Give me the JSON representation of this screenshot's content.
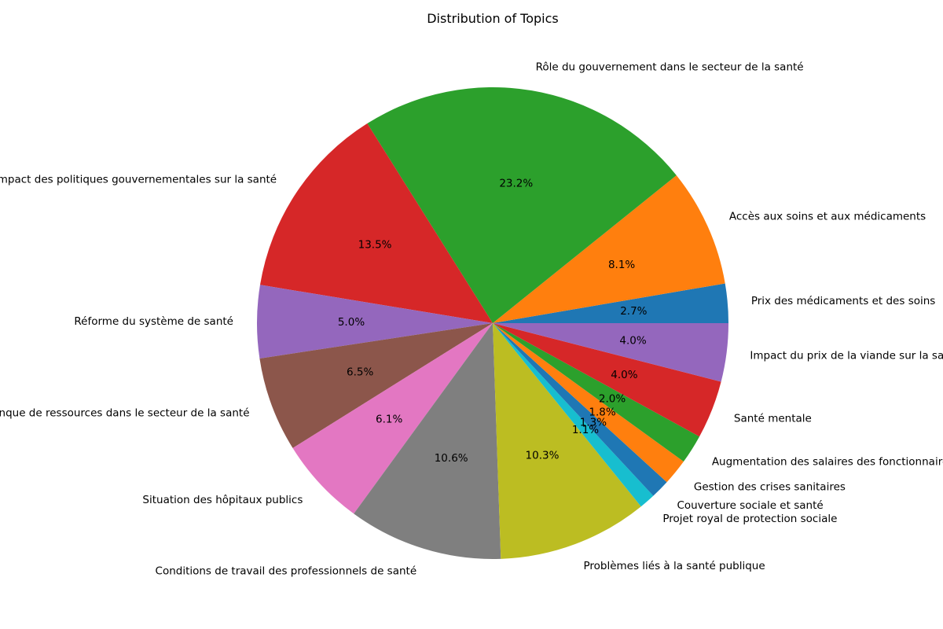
{
  "chart_data": {
    "type": "pie",
    "title": "Distribution of Topics",
    "start_angle_deg": 0,
    "direction": "counterclockwise",
    "slices": [
      {
        "label": "Prix des médicaments et des soins",
        "value": 2.7,
        "pct_label": "2.7%",
        "color": "#1f77b4"
      },
      {
        "label": "Accès aux soins et aux médicaments",
        "value": 8.1,
        "pct_label": "8.1%",
        "color": "#ff7f0e"
      },
      {
        "label": "Rôle du gouvernement dans le secteur de la santé",
        "value": 23.2,
        "pct_label": "23.2%",
        "color": "#2ca02c"
      },
      {
        "label": "Impact des politiques gouvernementales sur la santé",
        "value": 13.5,
        "pct_label": "13.5%",
        "color": "#d62728"
      },
      {
        "label": "Réforme du système de santé",
        "value": 5.0,
        "pct_label": "5.0%",
        "color": "#9467bd"
      },
      {
        "label": "Manque de ressources dans le secteur de la santé",
        "value": 6.5,
        "pct_label": "6.5%",
        "color": "#8c564b"
      },
      {
        "label": "Situation des hôpitaux publics",
        "value": 6.1,
        "pct_label": "6.1%",
        "color": "#e377c2"
      },
      {
        "label": "Conditions de travail des professionnels de santé",
        "value": 10.6,
        "pct_label": "10.6%",
        "color": "#7f7f7f"
      },
      {
        "label": "Problèmes liés à la santé publique",
        "value": 10.3,
        "pct_label": "10.3%",
        "color": "#bcbd22"
      },
      {
        "label": "Projet royal de protection sociale",
        "value": 1.1,
        "pct_label": "1.1%",
        "color": "#17becf"
      },
      {
        "label": "Couverture sociale et santé",
        "value": 1.3,
        "pct_label": "1.3%",
        "color": "#1f77b4"
      },
      {
        "label": "Gestion des crises sanitaires",
        "value": 1.8,
        "pct_label": "1.8%",
        "color": "#ff7f0e"
      },
      {
        "label": "Augmentation des salaires des fonctionnaires",
        "value": 2.0,
        "pct_label": "2.0%",
        "color": "#2ca02c"
      },
      {
        "label": "Santé mentale",
        "value": 4.0,
        "pct_label": "4.0%",
        "color": "#d62728"
      },
      {
        "label": "Impact du prix de la viande sur la santé",
        "value": 4.0,
        "pct_label": "4.0%",
        "color": "#9467bd"
      }
    ]
  }
}
